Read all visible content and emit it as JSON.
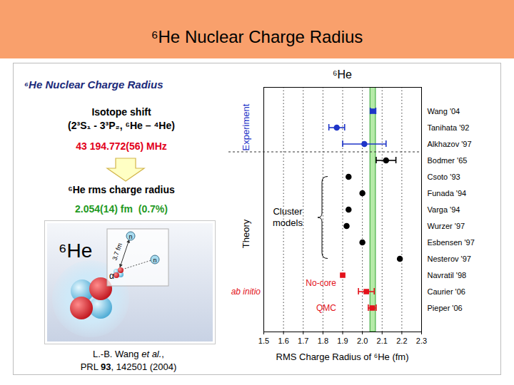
{
  "slide": {
    "title": "⁶He Nuclear Charge Radius",
    "panel": {
      "heading": "⁶He Nuclear Charge Radius",
      "method": "Isotope shift",
      "transition": "(2³S₁ - 3³P₂, ⁶He – ⁴He)",
      "shift": "43 194.772(56) MHz",
      "quantity": "⁶He rms charge radius",
      "result": "2.054(14) fm  (0.7%)",
      "figure": {
        "label": "⁶He",
        "distance": "3.7 fm",
        "neutron": "n",
        "alpha": "α"
      },
      "reference": [
        [
          {
            "text": "L.-B. Wang "
          },
          {
            "text": "et al.",
            "style": "italic"
          },
          {
            "text": ","
          }
        ],
        [
          {
            "text": "PRL "
          },
          {
            "text": "93",
            "style": "bold"
          },
          {
            "text": ", 142501 (2004)"
          }
        ]
      ]
    }
  },
  "chart_data": {
    "type": "errorbar",
    "title": "⁶He",
    "xlabel": "RMS Charge Radius of ⁶He (fm)",
    "xlim": [
      1.5,
      2.3
    ],
    "xticks": [
      1.5,
      1.6,
      1.7,
      1.8,
      1.9,
      {
        "value": 2,
        "label": "2.0"
      },
      2.1,
      2.2,
      2.3
    ],
    "grid": true,
    "series": [
      {
        "name": "Experiment",
        "color": "#1f35c8",
        "rows": [
          {
            "name": "Wang '04",
            "value": 2.054,
            "error": 0.014,
            "marker": "square"
          },
          {
            "name": "Tanihata '92",
            "value": 1.87,
            "error": 0.04,
            "marker": "circle"
          },
          {
            "name": "Alkhazov '97",
            "value": 2.01,
            "error": 0.11,
            "marker": "circle"
          }
        ]
      },
      {
        "name": "Theory",
        "color": "#000000",
        "rows": [
          {
            "name": "Bodmer '65",
            "value": 2.12,
            "error": 0.05,
            "marker": "circle"
          }
        ],
        "groups": [
          {
            "name": "Cluster models",
            "color": "#000000",
            "rows": [
              {
                "name": "Csoto '93",
                "value": 1.93,
                "marker": "circle"
              },
              {
                "name": "Funada '94",
                "value": 2.0,
                "marker": "circle"
              },
              {
                "name": "Varga '94",
                "value": 1.93,
                "marker": "circle"
              },
              {
                "name": "Wurzer '97",
                "value": 1.92,
                "marker": "circle"
              },
              {
                "name": "Esbensen '97",
                "value": 2.0,
                "marker": "circle"
              },
              {
                "name": "Nesterov '97",
                "value": 2.19,
                "marker": "circle"
              }
            ]
          },
          {
            "name": "ab initio",
            "color": "#e3121b",
            "groups": [
              {
                "name": "No-core",
                "rows": [
                  {
                    "name": "Navratil '98",
                    "value": 1.9,
                    "marker": "square"
                  },
                  {
                    "name": "Caurier '06",
                    "value": 2.02,
                    "error": 0.04,
                    "marker": "square"
                  }
                ]
              },
              {
                "name": "QMC",
                "rows": [
                  {
                    "name": "Pieper '06",
                    "value": 2.05,
                    "error": 0.02,
                    "marker": "square"
                  }
                ]
              }
            ]
          }
        ]
      }
    ]
  }
}
